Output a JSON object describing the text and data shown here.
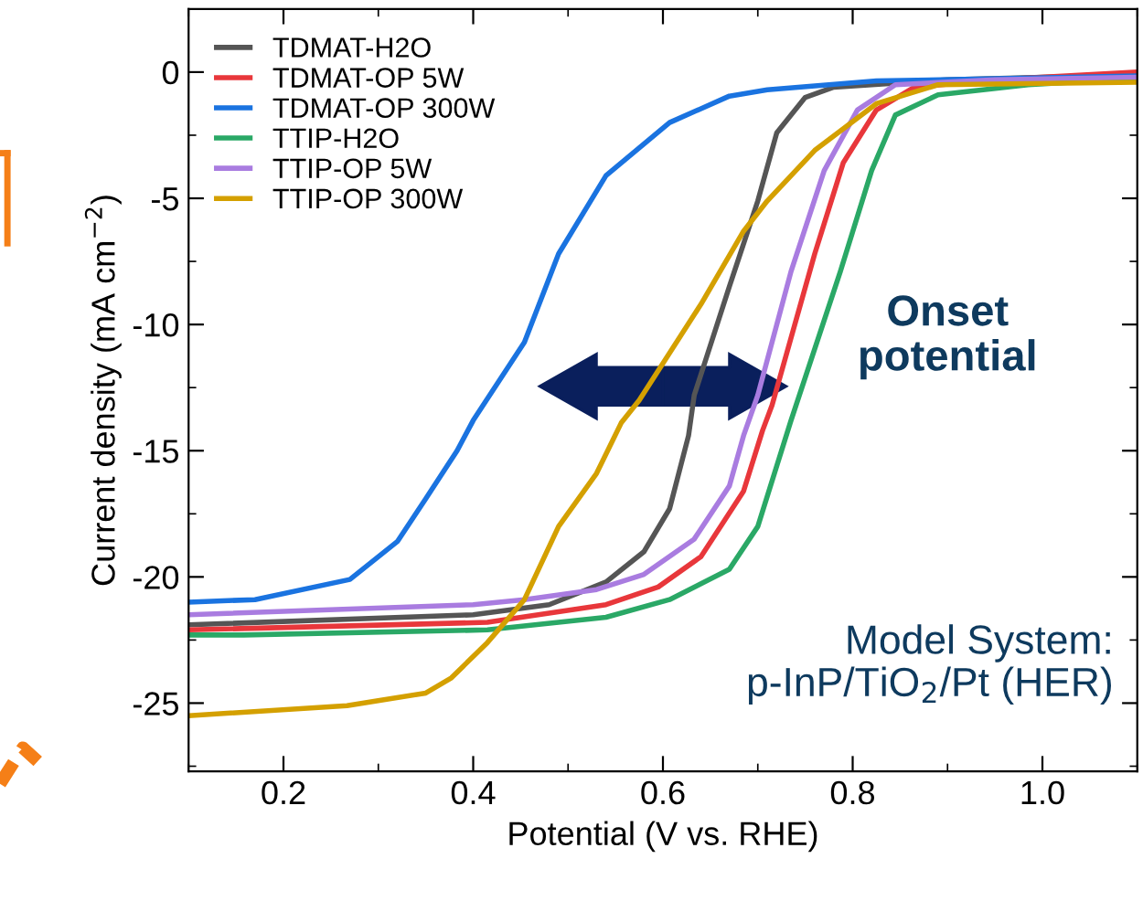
{
  "chart_data": {
    "type": "line",
    "xlabel": "Potential (V vs. RHE)",
    "ylabel": "Current density (mA cm$^{−2}$)",
    "xlim": [
      0.1,
      1.1
    ],
    "ylim": [
      -27.7,
      2.5
    ],
    "xticks": [
      {
        "value": 0.1,
        "label": null
      },
      0.2,
      {
        "value": 0.3,
        "label": null
      },
      0.4,
      {
        "value": 0.5,
        "label": null
      },
      0.6,
      {
        "value": 0.7,
        "label": null
      },
      0.8,
      {
        "value": 0.9,
        "label": null
      },
      {
        "value": 1.0,
        "label": "1.0"
      },
      {
        "value": 1.1,
        "label": null
      }
    ],
    "yticks": [
      {
        "value": -27.5,
        "label": null
      },
      -25,
      {
        "value": -22.5,
        "label": null
      },
      -20,
      {
        "value": -17.5,
        "label": null
      },
      -15,
      {
        "value": -12.5,
        "label": null
      },
      -10,
      {
        "value": -7.5,
        "label": null
      },
      -5,
      {
        "value": -2.5,
        "label": null
      },
      0,
      {
        "value": 2.5,
        "label": null
      }
    ],
    "grid": false,
    "legend": "top left",
    "line_style": "solid",
    "marker": "none",
    "annotations": [
      "Onset\npotential",
      "Model System:\np-InP/TiO$_{2}$/Pt (HER)"
    ],
    "series": [
      {
        "name": "TDMAT-H2O",
        "color": "#555555",
        "x": [
          0.1,
          0.4,
          0.48,
          0.54,
          0.58,
          0.607,
          0.627,
          0.633,
          0.67,
          0.7,
          0.72,
          0.75,
          0.78,
          0.9,
          1.1
        ],
        "values": [
          -21.9,
          -21.5,
          -21.1,
          -20.2,
          -19.0,
          -17.3,
          -14.4,
          -12.8,
          -8.5,
          -5.1,
          -2.4,
          -1.0,
          -0.6,
          -0.3,
          -0.1
        ]
      },
      {
        "name": "TDMAT-OP 5W",
        "color": "#e8373b",
        "x": [
          0.1,
          0.415,
          0.54,
          0.595,
          0.64,
          0.685,
          0.705,
          0.715,
          0.76,
          0.79,
          0.825,
          0.865,
          0.95,
          1.1
        ],
        "values": [
          -22.1,
          -21.8,
          -21.1,
          -20.4,
          -19.2,
          -16.6,
          -14.2,
          -13.2,
          -7.2,
          -3.6,
          -1.5,
          -0.6,
          -0.3,
          0.0
        ]
      },
      {
        "name": "TDMAT-OP 300W",
        "color": "#1a73e0",
        "x": [
          0.1,
          0.17,
          0.27,
          0.32,
          0.35,
          0.383,
          0.4,
          0.454,
          0.49,
          0.54,
          0.607,
          0.67,
          0.71,
          0.825,
          1.1
        ],
        "values": [
          -21.0,
          -20.9,
          -20.1,
          -18.6,
          -16.9,
          -15.0,
          -13.8,
          -10.7,
          -7.2,
          -4.1,
          -2.0,
          -0.95,
          -0.7,
          -0.35,
          -0.15
        ]
      },
      {
        "name": "TTIP-H2O",
        "color": "#2aa866",
        "x": [
          0.1,
          0.158,
          0.415,
          0.54,
          0.607,
          0.67,
          0.7,
          0.735,
          0.787,
          0.82,
          0.845,
          0.89,
          0.985,
          1.1
        ],
        "values": [
          -22.3,
          -22.3,
          -22.1,
          -21.6,
          -20.9,
          -19.7,
          -18.0,
          -13.8,
          -7.9,
          -3.9,
          -1.7,
          -0.9,
          -0.5,
          -0.25
        ]
      },
      {
        "name": "TTIP-OP 5W",
        "color": "#a97ce0",
        "x": [
          0.1,
          0.4,
          0.454,
          0.53,
          0.58,
          0.633,
          0.67,
          0.685,
          0.7,
          0.735,
          0.77,
          0.805,
          0.845,
          0.95,
          1.1
        ],
        "values": [
          -21.5,
          -21.1,
          -20.9,
          -20.5,
          -19.9,
          -18.5,
          -16.4,
          -14.4,
          -12.8,
          -7.9,
          -3.9,
          -1.5,
          -0.5,
          -0.3,
          -0.2
        ]
      },
      {
        "name": "TTIP-OP 300W",
        "color": "#d4a000",
        "x": [
          0.1,
          0.267,
          0.35,
          0.377,
          0.415,
          0.454,
          0.49,
          0.53,
          0.556,
          0.575,
          0.64,
          0.685,
          0.71,
          0.76,
          0.825,
          0.89,
          1.1
        ],
        "values": [
          -25.5,
          -25.1,
          -24.6,
          -24.0,
          -22.6,
          -20.9,
          -18.0,
          -15.9,
          -13.9,
          -13.0,
          -9.2,
          -6.3,
          -5.1,
          -3.1,
          -1.25,
          -0.5,
          -0.4
        ]
      }
    ]
  }
}
